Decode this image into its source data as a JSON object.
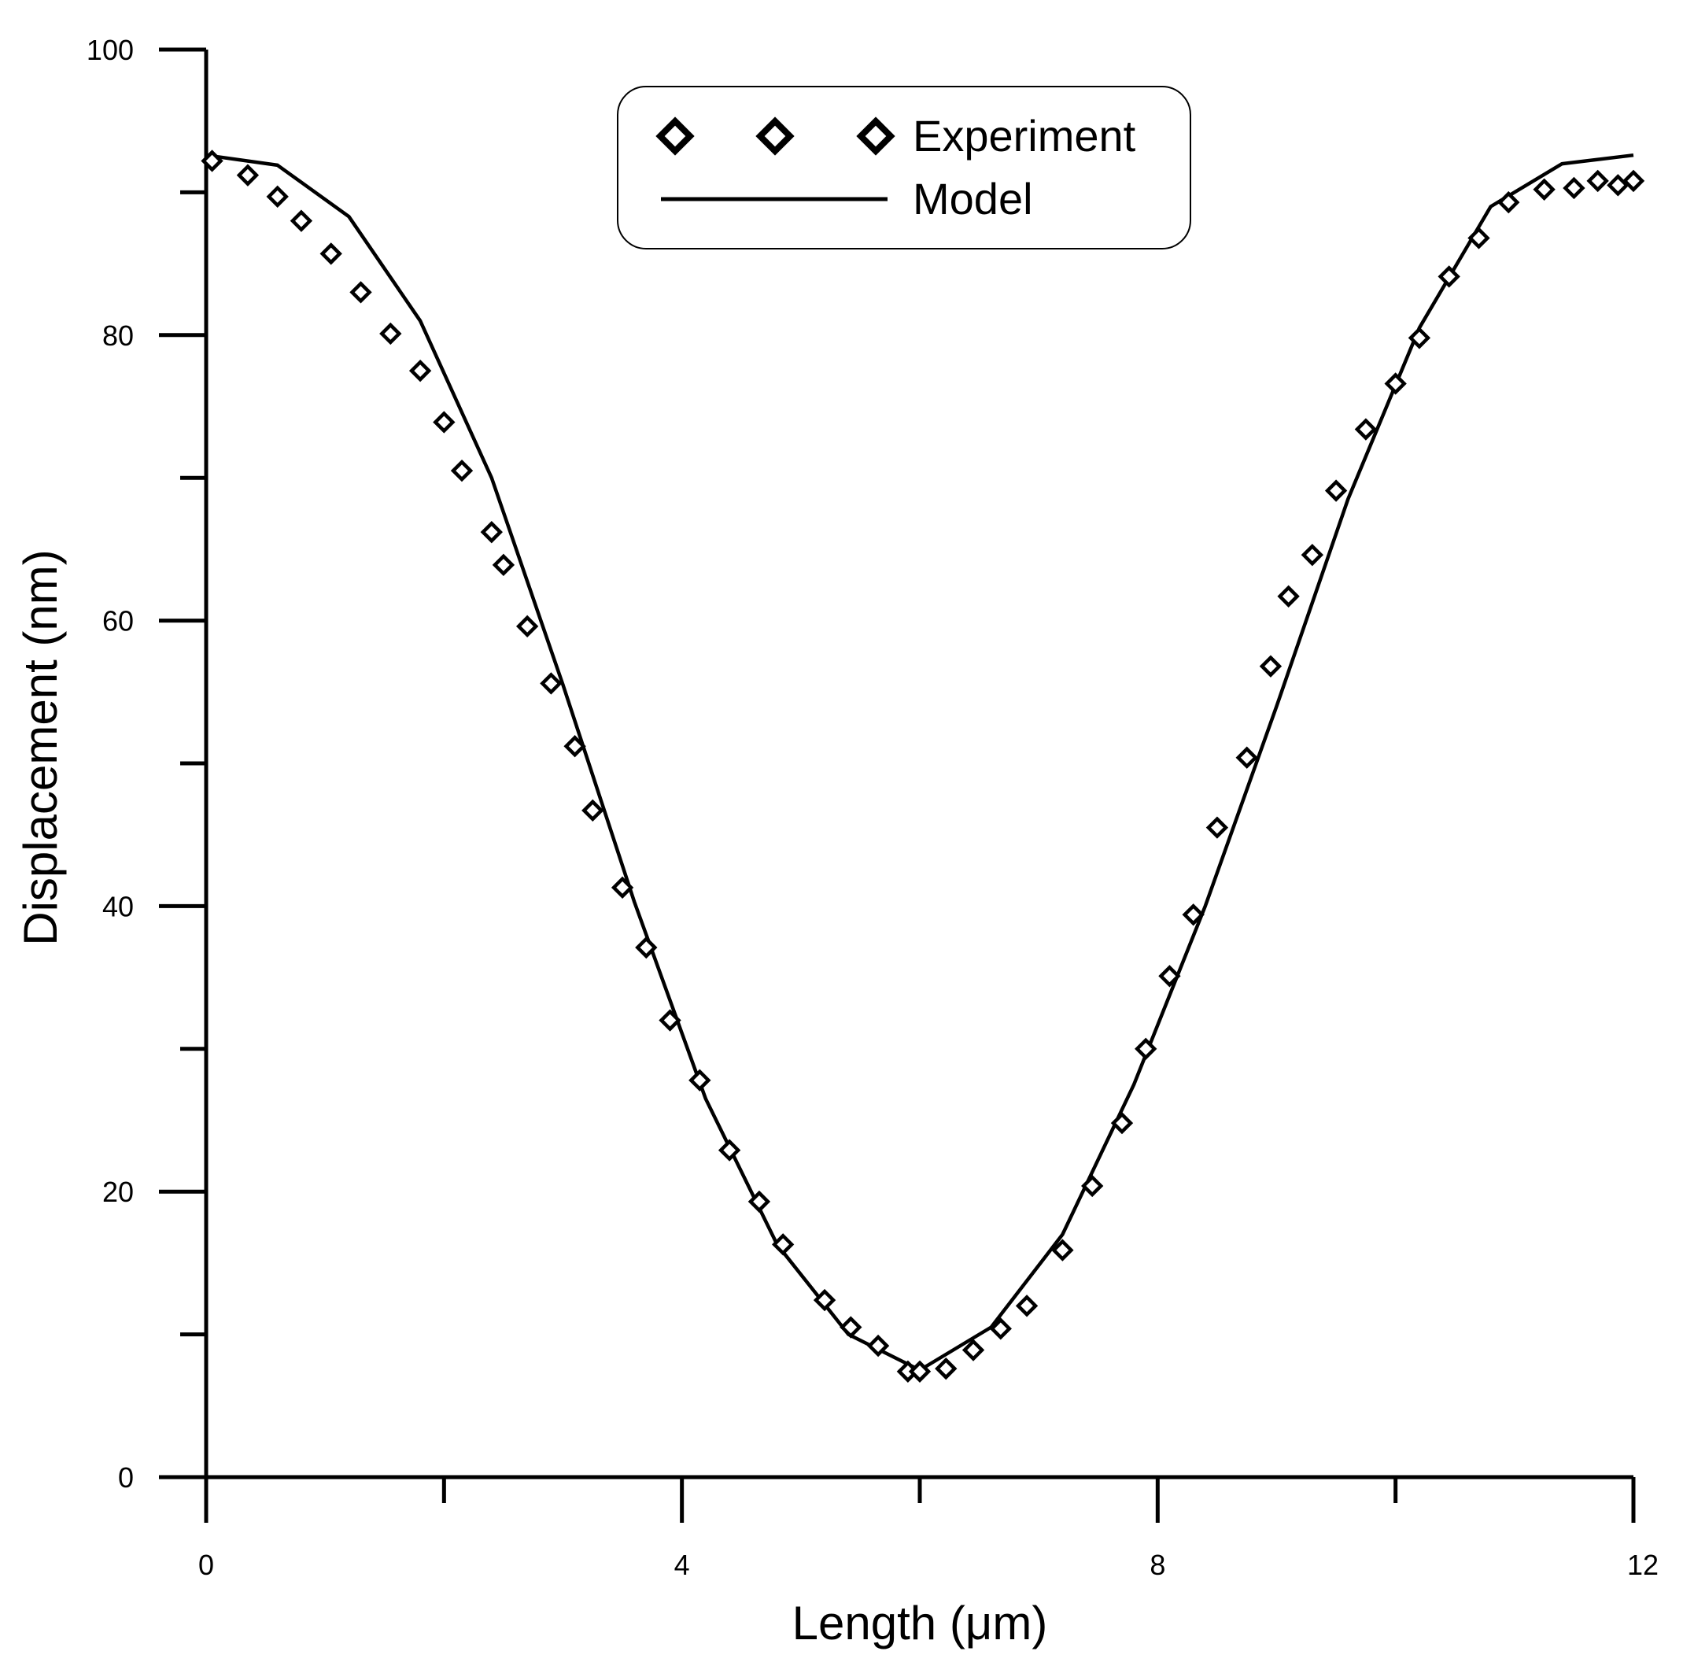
{
  "chart_data": {
    "type": "line",
    "xlabel": "Length (μm)",
    "ylabel": "Displacement (nm)",
    "xlim": [
      0,
      12
    ],
    "ylim": [
      0,
      100
    ],
    "x_ticks": [
      0,
      4,
      8,
      12
    ],
    "x_minor_ticks": [
      2,
      6,
      10
    ],
    "y_ticks": [
      0,
      20,
      40,
      60,
      80,
      100
    ],
    "y_minor_ticks": [
      10,
      30,
      50,
      70,
      90
    ],
    "grid": false,
    "legend_position": "top-center",
    "series": [
      {
        "name": "Experiment",
        "style": "markers",
        "marker": "diamond",
        "x": [
          0.05,
          0.35,
          0.6,
          0.8,
          1.05,
          1.3,
          1.55,
          1.8,
          2.0,
          2.15,
          2.4,
          2.5,
          2.7,
          2.9,
          3.1,
          3.25,
          3.5,
          3.7,
          3.9,
          4.15,
          4.4,
          4.65,
          4.85,
          5.2,
          5.42,
          5.65,
          5.9,
          6.0,
          6.22,
          6.45,
          6.68,
          6.9,
          7.2,
          7.45,
          7.7,
          7.9,
          8.1,
          8.3,
          8.5,
          8.75,
          8.95,
          9.1,
          9.3,
          9.5,
          9.75,
          10.0,
          10.2,
          10.45,
          10.7,
          10.95,
          11.25,
          11.5,
          11.7,
          11.87,
          12.0
        ],
        "y": [
          92.2,
          91.2,
          89.7,
          88.0,
          85.7,
          83.0,
          80.1,
          77.5,
          73.9,
          70.5,
          66.2,
          63.9,
          59.6,
          55.6,
          51.2,
          46.7,
          41.3,
          37.1,
          32.0,
          27.8,
          22.9,
          19.3,
          16.3,
          12.4,
          10.5,
          9.2,
          7.4,
          7.4,
          7.6,
          8.9,
          10.4,
          12.0,
          15.9,
          20.4,
          24.8,
          30.0,
          35.1,
          39.4,
          45.5,
          50.4,
          56.8,
          61.7,
          64.6,
          69.1,
          73.4,
          76.6,
          79.8,
          84.1,
          86.8,
          89.3,
          90.2,
          90.3,
          90.8,
          90.5,
          90.8
        ]
      },
      {
        "name": "Model",
        "style": "line",
        "x": [
          0.0,
          0.6,
          1.2,
          1.8,
          2.4,
          3.0,
          3.6,
          4.2,
          4.8,
          5.4,
          6.0,
          6.6,
          7.2,
          7.8,
          8.4,
          9.0,
          9.6,
          10.2,
          10.8,
          11.4,
          12.0
        ],
        "y": [
          92.6,
          91.9,
          88.3,
          81.0,
          70.0,
          55.5,
          40.3,
          26.5,
          16.3,
          10.0,
          7.5,
          10.5,
          17.0,
          27.5,
          40.0,
          54.0,
          68.5,
          80.5,
          89.0,
          92.0,
          92.6
        ]
      }
    ]
  }
}
